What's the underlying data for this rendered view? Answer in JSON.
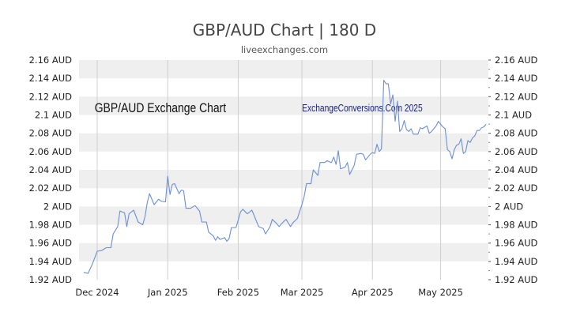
{
  "header": {
    "title": "GBP/AUD Chart | 180 D",
    "subtitle": "liveexchanges.com"
  },
  "watermarks": {
    "left": "GBP/AUD Exchange Chart",
    "right": "ExchangeConversions.Com 2025"
  },
  "colors": {
    "line": "#6b8fd6",
    "band": "#efefef",
    "axis_text": "#222222",
    "watermark_left": "#111111",
    "watermark_right": "#1a237e"
  },
  "chart_data": {
    "type": "line",
    "title": "GBP/AUD Chart | 180 D",
    "ylim": [
      1.92,
      2.16
    ],
    "y_ticks": [
      1.92,
      1.94,
      1.96,
      1.98,
      2.0,
      2.02,
      2.04,
      2.06,
      2.08,
      2.1,
      2.12,
      2.14,
      2.16
    ],
    "y_tick_labels": [
      "1.92 AUD",
      "1.94 AUD",
      "1.96 AUD",
      "1.98 AUD",
      "2 AUD",
      "2.02 AUD",
      "2.04 AUD",
      "2.06 AUD",
      "2.08 AUD",
      "2.1 AUD",
      "2.12 AUD",
      "2.14 AUD",
      "2.16 AUD"
    ],
    "x_range": [
      "2024-11-23",
      "2025-05-22"
    ],
    "x_ticks": [
      {
        "date": "2024-12-01",
        "label": "Dec 2024"
      },
      {
        "date": "2025-01-01",
        "label": "Jan 2025"
      },
      {
        "date": "2025-02-01",
        "label": "Feb 2025"
      },
      {
        "date": "2025-03-01",
        "label": "Mar 2025"
      },
      {
        "date": "2025-04-01",
        "label": "Apr 2025"
      },
      {
        "date": "2025-05-01",
        "label": "May 2025"
      }
    ],
    "grid": "alternating horizontal bands, vertical lines at month starts",
    "series": [
      {
        "points": [
          [
            "2024-11-25",
            1.928
          ],
          [
            "2024-11-27",
            1.927
          ],
          [
            "2024-11-29",
            1.938
          ],
          [
            "2024-12-01",
            1.951
          ],
          [
            "2024-12-03",
            1.952
          ],
          [
            "2024-12-05",
            1.955
          ],
          [
            "2024-12-07",
            1.955
          ],
          [
            "2024-12-08",
            1.97
          ],
          [
            "2024-12-10",
            1.978
          ],
          [
            "2024-12-11",
            1.995
          ],
          [
            "2024-12-13",
            1.993
          ],
          [
            "2024-12-14",
            1.978
          ],
          [
            "2024-12-15",
            1.992
          ],
          [
            "2024-12-17",
            1.996
          ],
          [
            "2024-12-19",
            1.983
          ],
          [
            "2024-12-21",
            1.98
          ],
          [
            "2024-12-22",
            1.989
          ],
          [
            "2024-12-23",
            2.004
          ],
          [
            "2024-12-24",
            2.014
          ],
          [
            "2024-12-26",
            2.002
          ],
          [
            "2024-12-28",
            2.008
          ],
          [
            "2024-12-29",
            2.006
          ],
          [
            "2024-12-31",
            2.005
          ],
          [
            "2025-01-01",
            2.033
          ],
          [
            "2025-01-02",
            2.013
          ],
          [
            "2025-01-03",
            2.024
          ],
          [
            "2025-01-04",
            2.025
          ],
          [
            "2025-01-06",
            2.014
          ],
          [
            "2025-01-07",
            2.018
          ],
          [
            "2025-01-08",
            2.017
          ],
          [
            "2025-01-09",
            1.998
          ],
          [
            "2025-01-11",
            1.998
          ],
          [
            "2025-01-13",
            2.001
          ],
          [
            "2025-01-15",
            1.995
          ],
          [
            "2025-01-16",
            1.983
          ],
          [
            "2025-01-18",
            1.983
          ],
          [
            "2025-01-19",
            1.972
          ],
          [
            "2025-01-21",
            1.968
          ],
          [
            "2025-01-22",
            1.963
          ],
          [
            "2025-01-23",
            1.967
          ],
          [
            "2025-01-24",
            1.964
          ],
          [
            "2025-01-26",
            1.966
          ],
          [
            "2025-01-27",
            1.962
          ],
          [
            "2025-01-28",
            1.965
          ],
          [
            "2025-01-29",
            1.977
          ],
          [
            "2025-01-31",
            1.977
          ],
          [
            "2025-02-01",
            1.985
          ],
          [
            "2025-02-02",
            1.994
          ],
          [
            "2025-02-03",
            1.997
          ],
          [
            "2025-02-05",
            1.992
          ],
          [
            "2025-02-07",
            1.996
          ],
          [
            "2025-02-08",
            1.99
          ],
          [
            "2025-02-10",
            1.978
          ],
          [
            "2025-02-12",
            1.976
          ],
          [
            "2025-02-13",
            1.97
          ],
          [
            "2025-02-15",
            1.978
          ],
          [
            "2025-02-16",
            1.986
          ],
          [
            "2025-02-18",
            1.981
          ],
          [
            "2025-02-19",
            1.978
          ],
          [
            "2025-02-20",
            1.981
          ],
          [
            "2025-02-22",
            1.986
          ],
          [
            "2025-02-24",
            1.978
          ],
          [
            "2025-02-25",
            1.982
          ],
          [
            "2025-02-27",
            1.987
          ],
          [
            "2025-03-01",
            2.002
          ],
          [
            "2025-03-02",
            2.011
          ],
          [
            "2025-03-03",
            2.025
          ],
          [
            "2025-03-05",
            2.025
          ],
          [
            "2025-03-06",
            2.04
          ],
          [
            "2025-03-08",
            2.034
          ],
          [
            "2025-03-09",
            2.048
          ],
          [
            "2025-03-11",
            2.048
          ],
          [
            "2025-03-12",
            2.05
          ],
          [
            "2025-03-14",
            2.048
          ],
          [
            "2025-03-15",
            2.054
          ],
          [
            "2025-03-16",
            2.046
          ],
          [
            "2025-03-17",
            2.061
          ],
          [
            "2025-03-18",
            2.041
          ],
          [
            "2025-03-20",
            2.043
          ],
          [
            "2025-03-21",
            2.048
          ],
          [
            "2025-03-22",
            2.035
          ],
          [
            "2025-03-24",
            2.045
          ],
          [
            "2025-03-25",
            2.057
          ],
          [
            "2025-03-27",
            2.058
          ],
          [
            "2025-03-28",
            2.057
          ],
          [
            "2025-03-29",
            2.051
          ],
          [
            "2025-03-31",
            2.057
          ],
          [
            "2025-04-01",
            2.059
          ],
          [
            "2025-04-02",
            2.058
          ],
          [
            "2025-04-03",
            2.068
          ],
          [
            "2025-04-04",
            2.06
          ],
          [
            "2025-04-05",
            2.063
          ],
          [
            "2025-04-06",
            2.138
          ],
          [
            "2025-04-07",
            2.134
          ],
          [
            "2025-04-08",
            2.134
          ],
          [
            "2025-04-09",
            2.112
          ],
          [
            "2025-04-10",
            2.122
          ],
          [
            "2025-04-11",
            2.093
          ],
          [
            "2025-04-12",
            2.115
          ],
          [
            "2025-04-13",
            2.082
          ],
          [
            "2025-04-14",
            2.085
          ],
          [
            "2025-04-15",
            2.094
          ],
          [
            "2025-04-16",
            2.084
          ],
          [
            "2025-04-17",
            2.082
          ],
          [
            "2025-04-18",
            2.085
          ],
          [
            "2025-04-19",
            2.079
          ],
          [
            "2025-04-21",
            2.079
          ],
          [
            "2025-04-22",
            2.086
          ],
          [
            "2025-04-23",
            2.085
          ],
          [
            "2025-04-25",
            2.088
          ],
          [
            "2025-04-26",
            2.08
          ],
          [
            "2025-04-27",
            2.082
          ],
          [
            "2025-04-29",
            2.088
          ],
          [
            "2025-04-30",
            2.093
          ],
          [
            "2025-05-02",
            2.087
          ],
          [
            "2025-05-03",
            2.085
          ],
          [
            "2025-05-04",
            2.062
          ],
          [
            "2025-05-05",
            2.06
          ],
          [
            "2025-05-06",
            2.052
          ],
          [
            "2025-05-07",
            2.062
          ],
          [
            "2025-05-08",
            2.067
          ],
          [
            "2025-05-09",
            2.068
          ],
          [
            "2025-05-10",
            2.074
          ],
          [
            "2025-05-11",
            2.058
          ],
          [
            "2025-05-12",
            2.06
          ],
          [
            "2025-05-13",
            2.072
          ],
          [
            "2025-05-14",
            2.07
          ],
          [
            "2025-05-15",
            2.075
          ],
          [
            "2025-05-16",
            2.077
          ],
          [
            "2025-05-17",
            2.083
          ],
          [
            "2025-05-18",
            2.083
          ],
          [
            "2025-05-19",
            2.086
          ],
          [
            "2025-05-20",
            2.087
          ],
          [
            "2025-05-21",
            2.09
          ]
        ]
      }
    ]
  }
}
